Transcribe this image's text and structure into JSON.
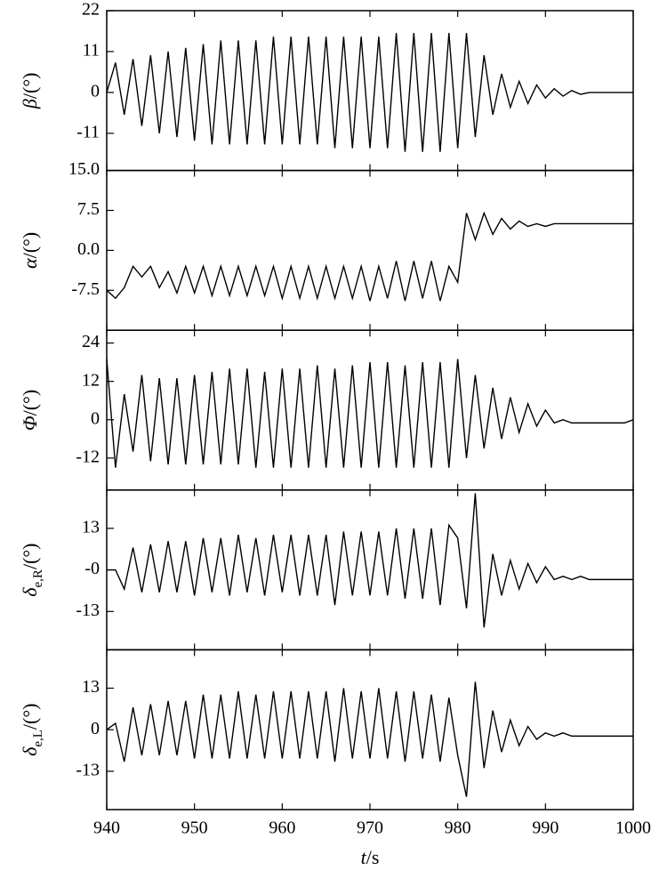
{
  "chart_data": [
    {
      "type": "line",
      "ylabel": [
        "β",
        "/(°)"
      ],
      "color": "#000000",
      "xlim": [
        940,
        1000
      ],
      "xticks": [
        940,
        950,
        960,
        970,
        980,
        990,
        1000
      ],
      "ylim": [
        -21,
        22
      ],
      "yticks": [
        -11,
        0,
        11,
        22
      ],
      "x": [
        940,
        941,
        942,
        943,
        944,
        945,
        946,
        947,
        948,
        949,
        950,
        951,
        952,
        953,
        954,
        955,
        956,
        957,
        958,
        959,
        960,
        961,
        962,
        963,
        964,
        965,
        966,
        967,
        968,
        969,
        970,
        971,
        972,
        973,
        974,
        975,
        976,
        977,
        978,
        979,
        980,
        981,
        982,
        983,
        984,
        985,
        986,
        987,
        988,
        989,
        990,
        991,
        992,
        993,
        994,
        995,
        996,
        997,
        998,
        999,
        1000
      ],
      "values": [
        0,
        8,
        -6,
        9,
        -9,
        10,
        -11,
        11,
        -12,
        12,
        -13,
        13,
        -14,
        14,
        -14,
        14,
        -14,
        14,
        -14,
        15,
        -14,
        15,
        -14,
        15,
        -14,
        15,
        -15,
        15,
        -15,
        15,
        -15,
        15,
        -15,
        16,
        -16,
        16,
        -16,
        16,
        -16,
        16,
        -15,
        16,
        -12,
        10,
        -6,
        5,
        -4,
        3,
        -3,
        2,
        -1.5,
        1,
        -1,
        0.5,
        -0.5,
        0,
        0,
        0,
        0,
        0,
        0
      ]
    },
    {
      "type": "line",
      "ylabel": [
        "α",
        "/(°)"
      ],
      "color": "#000000",
      "xlim": [
        940,
        1000
      ],
      "xticks": [
        940,
        950,
        960,
        970,
        980,
        990,
        1000
      ],
      "ylim": [
        -15,
        15
      ],
      "yticks": [
        -7.5,
        {
          "value": 0,
          "label": "0.0"
        },
        7.5,
        {
          "value": 15,
          "label": "15.0"
        }
      ],
      "x": [
        940,
        941,
        942,
        943,
        944,
        945,
        946,
        947,
        948,
        949,
        950,
        951,
        952,
        953,
        954,
        955,
        956,
        957,
        958,
        959,
        960,
        961,
        962,
        963,
        964,
        965,
        966,
        967,
        968,
        969,
        970,
        971,
        972,
        973,
        974,
        975,
        976,
        977,
        978,
        979,
        980,
        981,
        982,
        983,
        984,
        985,
        986,
        987,
        988,
        989,
        990,
        991,
        992,
        993,
        994,
        995,
        996,
        997,
        998,
        999,
        1000
      ],
      "values": [
        -7.5,
        -9,
        -7,
        -3,
        -5,
        -3,
        -7,
        -4,
        -8,
        -3,
        -8,
        -3,
        -8.5,
        -3,
        -8.5,
        -3,
        -8.5,
        -3,
        -8.5,
        -3,
        -9,
        -3,
        -9,
        -3,
        -9,
        -3,
        -9,
        -3,
        -9,
        -3,
        -9.5,
        -3,
        -9,
        -2,
        -9.5,
        -2,
        -9,
        -2,
        -9.5,
        -3,
        -6,
        7,
        2,
        7,
        3,
        6,
        4,
        5.5,
        4.5,
        5,
        4.5,
        5,
        5,
        5,
        5,
        5,
        5,
        5,
        5,
        5,
        5
      ]
    },
    {
      "type": "line",
      "ylabel": [
        "Φ",
        "/(°)"
      ],
      "color": "#000000",
      "xlim": [
        940,
        1000
      ],
      "xticks": [
        940,
        950,
        960,
        970,
        980,
        990,
        1000
      ],
      "ylim": [
        -22,
        28
      ],
      "yticks": [
        -12,
        0,
        12,
        24
      ],
      "x": [
        940,
        941,
        942,
        943,
        944,
        945,
        946,
        947,
        948,
        949,
        950,
        951,
        952,
        953,
        954,
        955,
        956,
        957,
        958,
        959,
        960,
        961,
        962,
        963,
        964,
        965,
        966,
        967,
        968,
        969,
        970,
        971,
        972,
        973,
        974,
        975,
        976,
        977,
        978,
        979,
        980,
        981,
        982,
        983,
        984,
        985,
        986,
        987,
        988,
        989,
        990,
        991,
        992,
        993,
        994,
        995,
        996,
        997,
        998,
        999,
        1000
      ],
      "values": [
        19,
        -15,
        8,
        -10,
        14,
        -13,
        13,
        -14,
        13,
        -14,
        14,
        -14,
        15,
        -14,
        16,
        -14,
        16,
        -15,
        15,
        -15,
        16,
        -15,
        16,
        -15,
        17,
        -15,
        16,
        -15,
        17,
        -15,
        18,
        -15,
        18,
        -15,
        17,
        -15,
        18,
        -15,
        18,
        -15,
        19,
        -12,
        14,
        -9,
        10,
        -6,
        7,
        -4,
        5,
        -2,
        3,
        -1,
        0,
        -1,
        -1,
        -1,
        -1,
        -1,
        -1,
        -1,
        0
      ]
    },
    {
      "type": "line",
      "ylabel": [
        "δ",
        "e,R",
        "/(°)"
      ],
      "color": "#000000",
      "xlim": [
        940,
        1000
      ],
      "xticks": [
        940,
        950,
        960,
        970,
        980,
        990,
        1000
      ],
      "ylim": [
        -25,
        25
      ],
      "yticks": [
        -13,
        {
          "value": 0,
          "label": "-0"
        },
        13
      ],
      "x": [
        940,
        941,
        942,
        943,
        944,
        945,
        946,
        947,
        948,
        949,
        950,
        951,
        952,
        953,
        954,
        955,
        956,
        957,
        958,
        959,
        960,
        961,
        962,
        963,
        964,
        965,
        966,
        967,
        968,
        969,
        970,
        971,
        972,
        973,
        974,
        975,
        976,
        977,
        978,
        979,
        980,
        981,
        982,
        983,
        984,
        985,
        986,
        987,
        988,
        989,
        990,
        991,
        992,
        993,
        994,
        995,
        996,
        997,
        998,
        999,
        1000
      ],
      "values": [
        0,
        0,
        -6,
        7,
        -7,
        8,
        -7,
        9,
        -7,
        9,
        -8,
        10,
        -7,
        10,
        -8,
        11,
        -7,
        10,
        -8,
        11,
        -7,
        11,
        -8,
        11,
        -8,
        11,
        -11,
        12,
        -8,
        12,
        -8,
        12,
        -8,
        13,
        -9,
        13,
        -9,
        13,
        -11,
        14,
        10,
        -12,
        24,
        -18,
        5,
        -8,
        3,
        -6,
        2,
        -4,
        1,
        -3,
        -2,
        -3,
        -2,
        -3,
        -3,
        -3,
        -3,
        -3,
        -3
      ]
    },
    {
      "type": "line",
      "ylabel": [
        "δ",
        "e,L",
        "/(°)"
      ],
      "color": "#000000",
      "xlim": [
        940,
        1000
      ],
      "xticks": [
        940,
        950,
        960,
        970,
        980,
        990,
        1000
      ],
      "ylim": [
        -25,
        25
      ],
      "yticks": [
        -13,
        0,
        13
      ],
      "xlabel": [
        "t",
        "/s"
      ],
      "x": [
        940,
        941,
        942,
        943,
        944,
        945,
        946,
        947,
        948,
        949,
        950,
        951,
        952,
        953,
        954,
        955,
        956,
        957,
        958,
        959,
        960,
        961,
        962,
        963,
        964,
        965,
        966,
        967,
        968,
        969,
        970,
        971,
        972,
        973,
        974,
        975,
        976,
        977,
        978,
        979,
        980,
        981,
        982,
        983,
        984,
        985,
        986,
        987,
        988,
        989,
        990,
        991,
        992,
        993,
        994,
        995,
        996,
        997,
        998,
        999,
        1000
      ],
      "values": [
        0,
        2,
        -10,
        7,
        -8,
        8,
        -8,
        9,
        -8,
        9,
        -9,
        11,
        -9,
        11,
        -9,
        12,
        -9,
        11,
        -9,
        12,
        -9,
        12,
        -9,
        12,
        -9,
        12,
        -10,
        13,
        -9,
        12,
        -9,
        13,
        -9,
        12,
        -10,
        12,
        -9,
        11,
        -10,
        10,
        -8,
        -21,
        15,
        -12,
        6,
        -7,
        3,
        -5,
        1,
        -3,
        -1,
        -2,
        -1,
        -2,
        -2,
        -2,
        -2,
        -2,
        -2,
        -2,
        -2
      ]
    }
  ]
}
